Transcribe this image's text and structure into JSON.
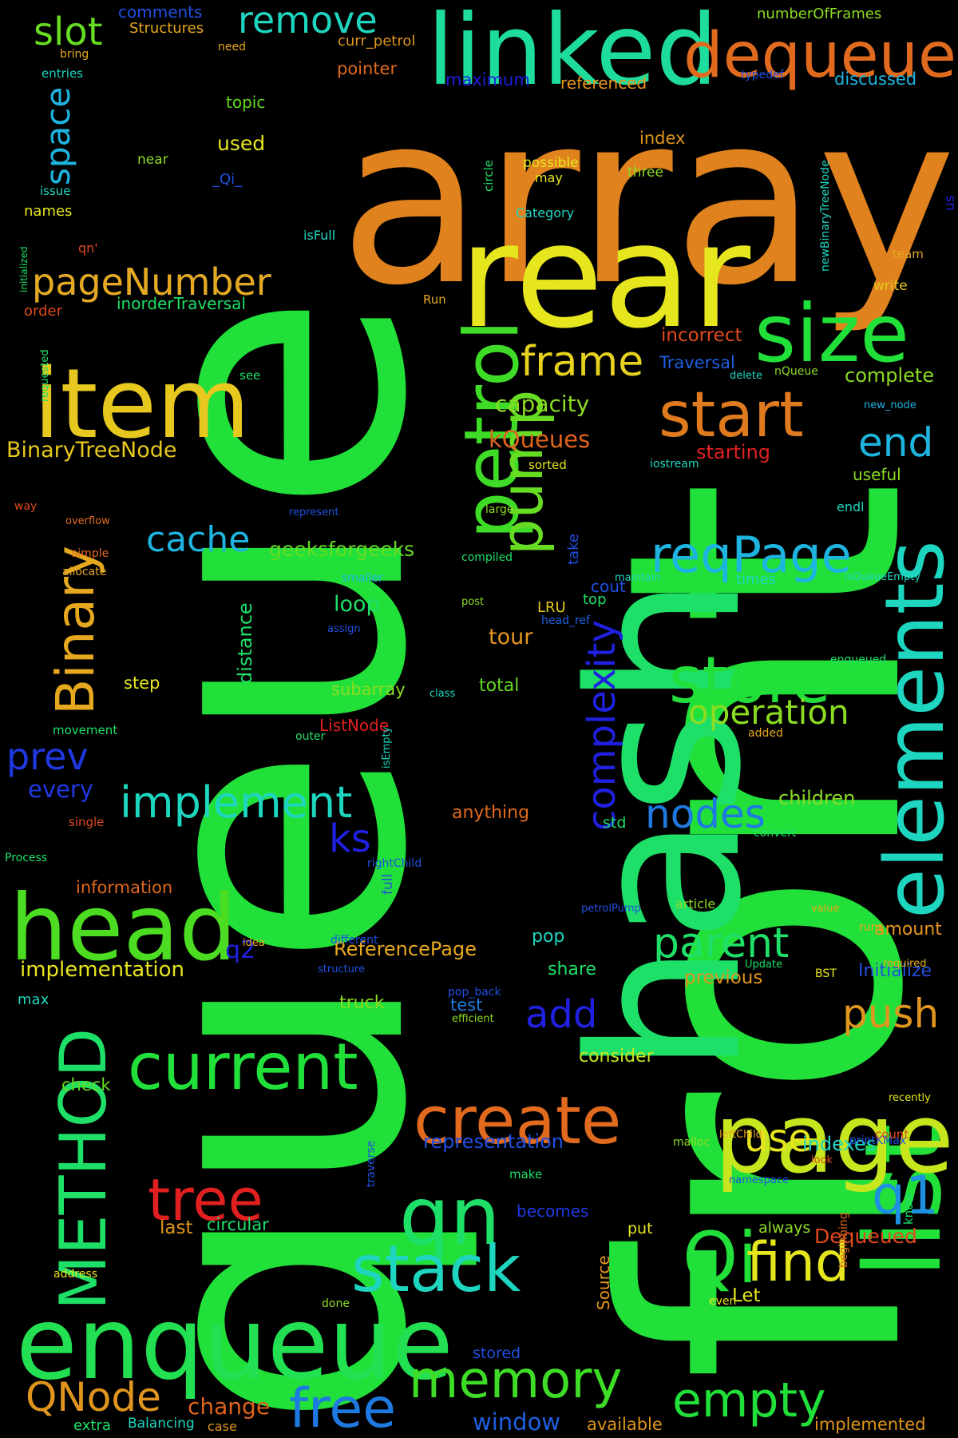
{
  "words": [
    {
      "text": "queue",
      "color": "#22e03a"
    },
    {
      "text": "front",
      "color": "#22e03a"
    },
    {
      "text": "array",
      "color": "#e0821e"
    },
    {
      "text": "hash",
      "color": "#1ee068"
    },
    {
      "text": "rear",
      "color": "#e6e61e"
    },
    {
      "text": "linked",
      "color": "#1edc9c"
    },
    {
      "text": "enqueue",
      "color": "#22e052"
    },
    {
      "text": "item",
      "color": "#e6c81e"
    },
    {
      "text": "head",
      "color": "#4cdc22"
    },
    {
      "text": "petrol",
      "color": "#3edc26"
    },
    {
      "text": "elements",
      "color": "#1ed6c0"
    },
    {
      "text": "list",
      "color": "#22e03a"
    },
    {
      "text": "page",
      "color": "#c8e61e"
    },
    {
      "text": "size",
      "color": "#22e03a"
    },
    {
      "text": "dequeue",
      "color": "#e06a1e"
    },
    {
      "text": "pump",
      "color": "#66dc22"
    },
    {
      "text": "current",
      "color": "#22e03a"
    },
    {
      "text": "qn",
      "color": "#1ee068"
    },
    {
      "text": "METHOD",
      "color": "#1ee068"
    },
    {
      "text": "Binary",
      "color": "#e6a81e"
    },
    {
      "text": "store",
      "color": "#22e03a"
    },
    {
      "text": "stack",
      "color": "#1ed6c0"
    },
    {
      "text": "create",
      "color": "#e06a1e"
    },
    {
      "text": "tree",
      "color": "#e02020"
    },
    {
      "text": "start",
      "color": "#e07a1e"
    },
    {
      "text": "reqPage",
      "color": "#1eb4e0"
    },
    {
      "text": "memory",
      "color": "#3edc26"
    },
    {
      "text": "free",
      "color": "#1e7ae0"
    },
    {
      "text": "empty",
      "color": "#22e03a"
    },
    {
      "text": "Qi",
      "color": "#22e03a"
    },
    {
      "text": "find",
      "color": "#e6e61e"
    },
    {
      "text": "q1",
      "color": "#1e90e0"
    },
    {
      "text": "implement",
      "color": "#1ed6c0"
    },
    {
      "text": "frame",
      "color": "#e6d21e"
    },
    {
      "text": "complexity",
      "color": "#2020e0"
    },
    {
      "text": "pageNumber",
      "color": "#1e7ae0"
    },
    {
      "text": "remove",
      "color": "#1ed6c0"
    },
    {
      "text": "slot",
      "color": "#66dc22"
    },
    {
      "text": "space",
      "color": "#1eb4e0"
    },
    {
      "text": "parent",
      "color": "#1ee068"
    },
    {
      "text": "operation",
      "color": "#8cdc22"
    },
    {
      "text": "nodes",
      "color": "#1e7ae0"
    },
    {
      "text": "cache",
      "color": "#1eb4e0"
    },
    {
      "text": "QNode",
      "color": "#e0961e"
    },
    {
      "text": "use",
      "color": "#e6e61e"
    },
    {
      "text": "push",
      "color": "#e0961e"
    },
    {
      "text": "end",
      "color": "#1eb4e0"
    },
    {
      "text": "prev",
      "color": "#2038e0"
    },
    {
      "text": "add",
      "color": "#2020e0"
    },
    {
      "text": "ks",
      "color": "#2020e0"
    },
    {
      "text": "capacity",
      "color": "#8cdc22"
    },
    {
      "text": "BinaryTreeNode",
      "color": "#e6c81e"
    },
    {
      "text": "kQueues",
      "color": "#e0641e"
    },
    {
      "text": "implementation",
      "color": "#e6e61e"
    },
    {
      "text": "window",
      "color": "#1e60e0"
    },
    {
      "text": "change",
      "color": "#e0641e"
    },
    {
      "text": "Dequeued",
      "color": "#e04a1e"
    },
    {
      "text": "representation",
      "color": "#2050e0"
    },
    {
      "text": "ReferencePage",
      "color": "#e6a81e"
    },
    {
      "text": "geeksforgeeks",
      "color": "#66dc22"
    },
    {
      "text": "every",
      "color": "#2038e0"
    },
    {
      "text": "children",
      "color": "#8cdc22"
    },
    {
      "text": "tour",
      "color": "#e6961e"
    },
    {
      "text": "loop",
      "color": "#1ee068"
    },
    {
      "text": "subarray",
      "color": "#8cdc22"
    },
    {
      "text": "consider",
      "color": "#c8e61e"
    },
    {
      "text": "complete",
      "color": "#8cdc22"
    },
    {
      "text": "starting",
      "color": "#e02020"
    },
    {
      "text": "incorrect",
      "color": "#e04a1e"
    },
    {
      "text": "Traversal",
      "color": "#1e60e0"
    },
    {
      "text": "anything",
      "color": "#e06a1e"
    },
    {
      "text": "information",
      "color": "#e06a1e"
    },
    {
      "text": "previous",
      "color": "#e0961e"
    },
    {
      "text": "Initialize",
      "color": "#2050e0"
    },
    {
      "text": "amount",
      "color": "#e6961e"
    },
    {
      "text": "indexes",
      "color": "#1ed6c0"
    },
    {
      "text": "truck",
      "color": "#8cdc22"
    },
    {
      "text": "test",
      "color": "#1e7ae0"
    },
    {
      "text": "share",
      "color": "#1ee068"
    },
    {
      "text": "pop",
      "color": "#1ed6c0"
    },
    {
      "text": "total",
      "color": "#66dc22"
    },
    {
      "text": "ListNode",
      "color": "#e02020"
    },
    {
      "text": "distance",
      "color": "#1ee068"
    },
    {
      "text": "q2",
      "color": "#2020e0"
    },
    {
      "text": "step",
      "color": "#e6e61e"
    },
    {
      "text": "check",
      "color": "#66dc22"
    },
    {
      "text": "circular",
      "color": "#1ee068"
    },
    {
      "text": "last",
      "color": "#e0961e"
    },
    {
      "text": "becomes",
      "color": "#2038e0"
    },
    {
      "text": "put",
      "color": "#e6e61e"
    },
    {
      "text": "always",
      "color": "#8cdc22"
    },
    {
      "text": "stored",
      "color": "#2050e0"
    },
    {
      "text": "available",
      "color": "#e0961e"
    },
    {
      "text": "implemented",
      "color": "#e0961e"
    },
    {
      "text": "extra",
      "color": "#1ee068"
    },
    {
      "text": "Balancing",
      "color": "#1ed6c0"
    },
    {
      "text": "case",
      "color": "#e0961e"
    },
    {
      "text": "Let",
      "color": "#e6e61e"
    },
    {
      "text": "Source",
      "color": "#e0961e"
    },
    {
      "text": "used",
      "color": "#e6e61e"
    },
    {
      "text": "topic",
      "color": "#66dc22"
    },
    {
      "text": "pointer",
      "color": "#e06a1e"
    },
    {
      "text": "maximum",
      "color": "#2020e0"
    },
    {
      "text": "referenced",
      "color": "#e6961e"
    },
    {
      "text": "discussed",
      "color": "#1eb4e0"
    },
    {
      "text": "index",
      "color": "#e0961e"
    },
    {
      "text": "comments",
      "color": "#2050e0"
    },
    {
      "text": "Structures",
      "color": "#e6a81e"
    },
    {
      "text": "curr_petrol",
      "color": "#e0961e"
    },
    {
      "text": "numberOfFrames",
      "color": "#8cdc22"
    },
    {
      "text": "names",
      "color": "#e6e61e"
    },
    {
      "text": "order",
      "color": "#e04a1e"
    },
    {
      "text": "inorderTraversal",
      "color": "#1ee068"
    },
    {
      "text": "cout",
      "color": "#2050e0"
    },
    {
      "text": "LRU",
      "color": "#e6c81e"
    },
    {
      "text": "top",
      "color": "#1ee068"
    },
    {
      "text": "times",
      "color": "#1ed6c0"
    },
    {
      "text": "useful",
      "color": "#8cdc22"
    },
    {
      "text": "max",
      "color": "#1ed6c0"
    },
    {
      "text": "std",
      "color": "#1ee068"
    },
    {
      "text": "take",
      "color": "#2050e0"
    },
    {
      "text": "near",
      "color": "#8cdc22"
    },
    {
      "text": "possible",
      "color": "#e6e61e"
    },
    {
      "text": "may",
      "color": "#e6e61e"
    },
    {
      "text": "three",
      "color": "#8cdc22"
    },
    {
      "text": "_Qi_",
      "color": "#2050e0"
    },
    {
      "text": "issue",
      "color": "#1ed6c0"
    },
    {
      "text": "circle",
      "color": "#1ee068"
    },
    {
      "text": "Category",
      "color": "#1ed6c0"
    },
    {
      "text": "isFull",
      "color": "#1ed6c0"
    },
    {
      "text": "qn'",
      "color": "#e04a1e"
    },
    {
      "text": "Run",
      "color": "#e6a81e"
    },
    {
      "text": "team",
      "color": "#e6a81e"
    },
    {
      "text": "write",
      "color": "#e6c81e"
    },
    {
      "text": "us",
      "color": "#2020e0"
    },
    {
      "text": "newBinaryTreeNode",
      "color": "#1ed6c0"
    },
    {
      "text": "typedef",
      "color": "#2050e0"
    },
    {
      "text": "entries",
      "color": "#1ed6c0"
    },
    {
      "text": "bring",
      "color": "#e6a81e"
    },
    {
      "text": "need",
      "color": "#e6a81e"
    },
    {
      "text": "initialized",
      "color": "#1ee068"
    },
    {
      "text": "requested",
      "color": "#1ee068"
    },
    {
      "text": "see",
      "color": "#1ee068"
    },
    {
      "text": "delete",
      "color": "#1ed6c0"
    },
    {
      "text": "nQueue",
      "color": "#8cdc22"
    },
    {
      "text": "new_node",
      "color": "#1eb4e0"
    },
    {
      "text": "sorted",
      "color": "#e6e61e"
    },
    {
      "text": "iostream",
      "color": "#1ed6c0"
    },
    {
      "text": "large",
      "color": "#8cdc22"
    },
    {
      "text": "endl",
      "color": "#1ed6c0"
    },
    {
      "text": "way",
      "color": "#e04a1e"
    },
    {
      "text": "overflow",
      "color": "#e06a1e"
    },
    {
      "text": "represent",
      "color": "#2050e0"
    },
    {
      "text": "simple",
      "color": "#e06a1e"
    },
    {
      "text": "allocate",
      "color": "#e6a81e"
    },
    {
      "text": "smaller",
      "color": "#1eb4e0"
    },
    {
      "text": "compiled",
      "color": "#1ee068"
    },
    {
      "text": "maintain",
      "color": "#1ed6c0"
    },
    {
      "text": "isQueueEmpty",
      "color": "#1ed6c0"
    },
    {
      "text": "post",
      "color": "#8cdc22"
    },
    {
      "text": "assign",
      "color": "#2050e0"
    },
    {
      "text": "head_ref",
      "color": "#1e60e0"
    },
    {
      "text": "enqueued",
      "color": "#1ee068"
    },
    {
      "text": "class",
      "color": "#1ed6c0"
    },
    {
      "text": "added",
      "color": "#e6a81e"
    },
    {
      "text": "movement",
      "color": "#1ee068"
    },
    {
      "text": "outer",
      "color": "#1ee068"
    },
    {
      "text": "isEmpty",
      "color": "#1ed6c0"
    },
    {
      "text": "full",
      "color": "#2050e0"
    },
    {
      "text": "pageNumber",
      "color": "#e6a81e"
    },
    {
      "text": "single",
      "color": "#e04a1e"
    },
    {
      "text": "convert",
      "color": "#1ee068"
    },
    {
      "text": "Process",
      "color": "#1ee068"
    },
    {
      "text": "rightChild",
      "color": "#2050e0"
    },
    {
      "text": "value",
      "color": "#e6a81e"
    },
    {
      "text": "article",
      "color": "#8cdc22"
    },
    {
      "text": "petrolPump",
      "color": "#2050e0"
    },
    {
      "text": "different",
      "color": "#2050e0"
    },
    {
      "text": "idea",
      "color": "#e6a81e"
    },
    {
      "text": "structure",
      "color": "#2050e0"
    },
    {
      "text": "runs",
      "color": "#e6a81e"
    },
    {
      "text": "Update",
      "color": "#1ee068"
    },
    {
      "text": "pop_back",
      "color": "#2050e0"
    },
    {
      "text": "BST",
      "color": "#e6e61e"
    },
    {
      "text": "required",
      "color": "#e6a81e"
    },
    {
      "text": "look",
      "color": "#e04a1e"
    },
    {
      "text": "leftChild",
      "color": "#e6a81e"
    },
    {
      "text": "malloc",
      "color": "#8cdc22"
    },
    {
      "text": "efficient",
      "color": "#8cdc22"
    },
    {
      "text": "traverse",
      "color": "#2050e0"
    },
    {
      "text": "namespace",
      "color": "#2050e0"
    },
    {
      "text": "printKMax",
      "color": "#2050e0"
    },
    {
      "text": "count",
      "color": "#e04a1e"
    },
    {
      "text": "recently",
      "color": "#e6e61e"
    },
    {
      "text": "make",
      "color": "#1ee068"
    },
    {
      "text": "address",
      "color": "#e6e61e"
    },
    {
      "text": "beginning",
      "color": "#e06a1e"
    },
    {
      "text": "know",
      "color": "#1ee068"
    },
    {
      "text": "done",
      "color": "#8cdc22"
    },
    {
      "text": "even",
      "color": "#e6e61e"
    }
  ]
}
